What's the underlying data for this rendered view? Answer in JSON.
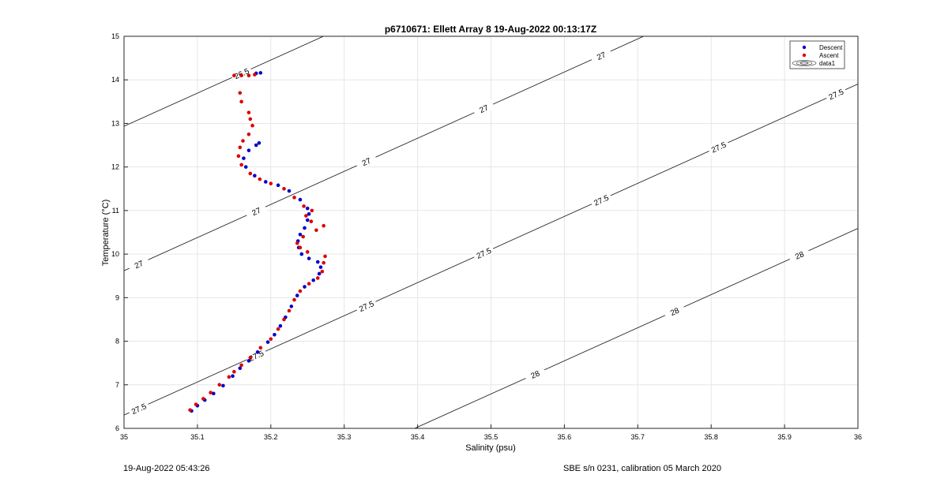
{
  "chart_data": {
    "type": "scatter",
    "title": "p6710671: Ellett Array 8 19-Aug-2022 00:13:17Z",
    "xlabel": "Salinity (psu)",
    "ylabel": "Temperature (°C)",
    "xlim": [
      35,
      36
    ],
    "ylim": [
      6,
      15
    ],
    "xticks": [
      35,
      35.1,
      35.2,
      35.3,
      35.4,
      35.5,
      35.6,
      35.7,
      35.8,
      35.9,
      36
    ],
    "yticks": [
      6,
      7,
      8,
      9,
      10,
      11,
      12,
      13,
      14,
      15
    ],
    "grid": true,
    "legend_position": "top-right",
    "legend": [
      "Descent",
      "Ascent",
      "data1"
    ],
    "series": [
      {
        "name": "Descent",
        "color": "#0000cc",
        "marker": "dot",
        "points": [
          [
            35.092,
            6.4
          ],
          [
            35.1,
            6.52
          ],
          [
            35.11,
            6.65
          ],
          [
            35.122,
            6.8
          ],
          [
            35.135,
            6.98
          ],
          [
            35.148,
            7.2
          ],
          [
            35.158,
            7.38
          ],
          [
            35.17,
            7.55
          ],
          [
            35.182,
            7.75
          ],
          [
            35.196,
            7.98
          ],
          [
            35.205,
            8.15
          ],
          [
            35.213,
            8.35
          ],
          [
            35.22,
            8.55
          ],
          [
            35.228,
            8.8
          ],
          [
            35.236,
            9.05
          ],
          [
            35.246,
            9.25
          ],
          [
            35.258,
            9.4
          ],
          [
            35.266,
            9.55
          ],
          [
            35.268,
            9.7
          ],
          [
            35.264,
            9.82
          ],
          [
            35.252,
            9.9
          ],
          [
            35.242,
            10.0
          ],
          [
            35.238,
            10.15
          ],
          [
            35.237,
            10.3
          ],
          [
            35.24,
            10.45
          ],
          [
            35.246,
            10.6
          ],
          [
            35.25,
            10.78
          ],
          [
            35.252,
            10.92
          ],
          [
            35.25,
            11.05
          ],
          [
            35.24,
            11.25
          ],
          [
            35.225,
            11.45
          ],
          [
            35.21,
            11.58
          ],
          [
            35.193,
            11.66
          ],
          [
            35.178,
            11.8
          ],
          [
            35.166,
            12.0
          ],
          [
            35.163,
            12.2
          ],
          [
            35.17,
            12.38
          ],
          [
            35.18,
            12.5
          ],
          [
            35.184,
            12.55
          ],
          [
            35.18,
            14.15
          ],
          [
            35.186,
            14.16
          ]
        ]
      },
      {
        "name": "Ascent",
        "color": "#dd0000",
        "marker": "dot",
        "points": [
          [
            35.09,
            6.42
          ],
          [
            35.098,
            6.55
          ],
          [
            35.108,
            6.68
          ],
          [
            35.118,
            6.82
          ],
          [
            35.13,
            7.0
          ],
          [
            35.143,
            7.18
          ],
          [
            35.15,
            7.3
          ],
          [
            35.16,
            7.45
          ],
          [
            35.172,
            7.62
          ],
          [
            35.186,
            7.85
          ],
          [
            35.2,
            8.05
          ],
          [
            35.21,
            8.28
          ],
          [
            35.218,
            8.5
          ],
          [
            35.225,
            8.7
          ],
          [
            35.232,
            8.95
          ],
          [
            35.24,
            9.15
          ],
          [
            35.252,
            9.32
          ],
          [
            35.264,
            9.45
          ],
          [
            35.27,
            9.6
          ],
          [
            35.272,
            9.8
          ],
          [
            35.274,
            9.95
          ],
          [
            35.25,
            10.05
          ],
          [
            35.24,
            10.15
          ],
          [
            35.236,
            10.25
          ],
          [
            35.244,
            10.4
          ],
          [
            35.262,
            10.55
          ],
          [
            35.272,
            10.65
          ],
          [
            35.255,
            10.75
          ],
          [
            35.248,
            10.88
          ],
          [
            35.256,
            11.0
          ],
          [
            35.245,
            11.1
          ],
          [
            35.232,
            11.3
          ],
          [
            35.218,
            11.5
          ],
          [
            35.2,
            11.62
          ],
          [
            35.185,
            11.72
          ],
          [
            35.172,
            11.85
          ],
          [
            35.16,
            12.05
          ],
          [
            35.156,
            12.25
          ],
          [
            35.158,
            12.45
          ],
          [
            35.162,
            12.6
          ],
          [
            35.17,
            12.75
          ],
          [
            35.175,
            12.95
          ],
          [
            35.172,
            13.1
          ],
          [
            35.17,
            13.25
          ],
          [
            35.16,
            13.5
          ],
          [
            35.158,
            13.7
          ],
          [
            35.15,
            14.1
          ],
          [
            35.16,
            14.1
          ],
          [
            35.17,
            14.1
          ],
          [
            35.178,
            14.12
          ]
        ]
      }
    ],
    "contours": [
      {
        "level": "26.5",
        "label_salinity": [
          35.16,
          35.33,
          35.48,
          35.64
        ]
      },
      {
        "level": "27",
        "label_salinity": [
          35.02,
          35.18,
          35.33,
          35.49,
          35.65,
          35.81,
          35.97
        ]
      },
      {
        "level": "27.5",
        "label_salinity": [
          35.02,
          35.18,
          35.33,
          35.49,
          35.65,
          35.81,
          35.97
        ]
      },
      {
        "level": "28",
        "label_salinity": [
          35.56,
          35.75,
          35.92
        ]
      }
    ]
  },
  "footer": {
    "left": "19-Aug-2022 05:43:26",
    "right": "SBE s/n 0231, calibration 05 March 2020"
  }
}
